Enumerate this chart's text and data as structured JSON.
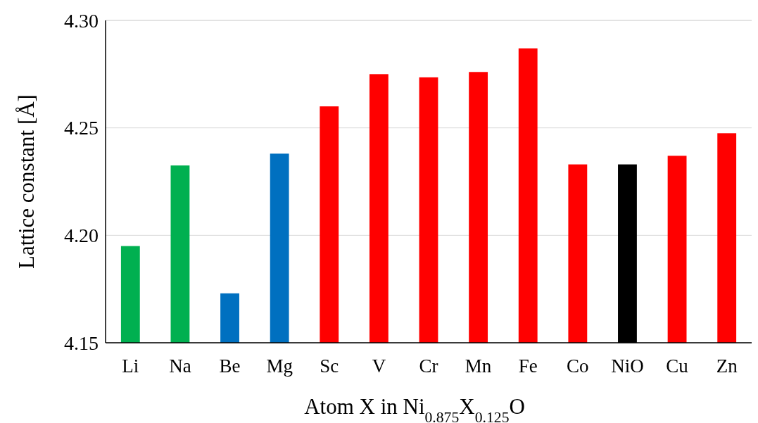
{
  "chart_data": {
    "type": "bar",
    "xlabel": "Atom X in Ni$_{0.875}$X$_{0.125}$O",
    "ylabel": "Lattice constant [Å]",
    "categories": [
      "Li",
      "Na",
      "Be",
      "Mg",
      "Sc",
      "V",
      "Cr",
      "Mn",
      "Fe",
      "Co",
      "NiO",
      "Cu",
      "Zn"
    ],
    "values": [
      4.195,
      4.2325,
      4.173,
      4.238,
      4.26,
      4.275,
      4.2735,
      4.276,
      4.287,
      4.233,
      4.233,
      4.237,
      4.2475
    ],
    "colors": [
      "#00b050",
      "#00b050",
      "#0070c0",
      "#0070c0",
      "#ff0000",
      "#ff0000",
      "#ff0000",
      "#ff0000",
      "#ff0000",
      "#ff0000",
      "#000000",
      "#ff0000",
      "#ff0000"
    ],
    "ylim": [
      4.15,
      4.3
    ],
    "yticks": [
      4.15,
      {
        "value": 4.2,
        "label": "4.20"
      },
      4.25,
      {
        "value": 4.3,
        "label": "4.30"
      }
    ],
    "grid": "y"
  }
}
